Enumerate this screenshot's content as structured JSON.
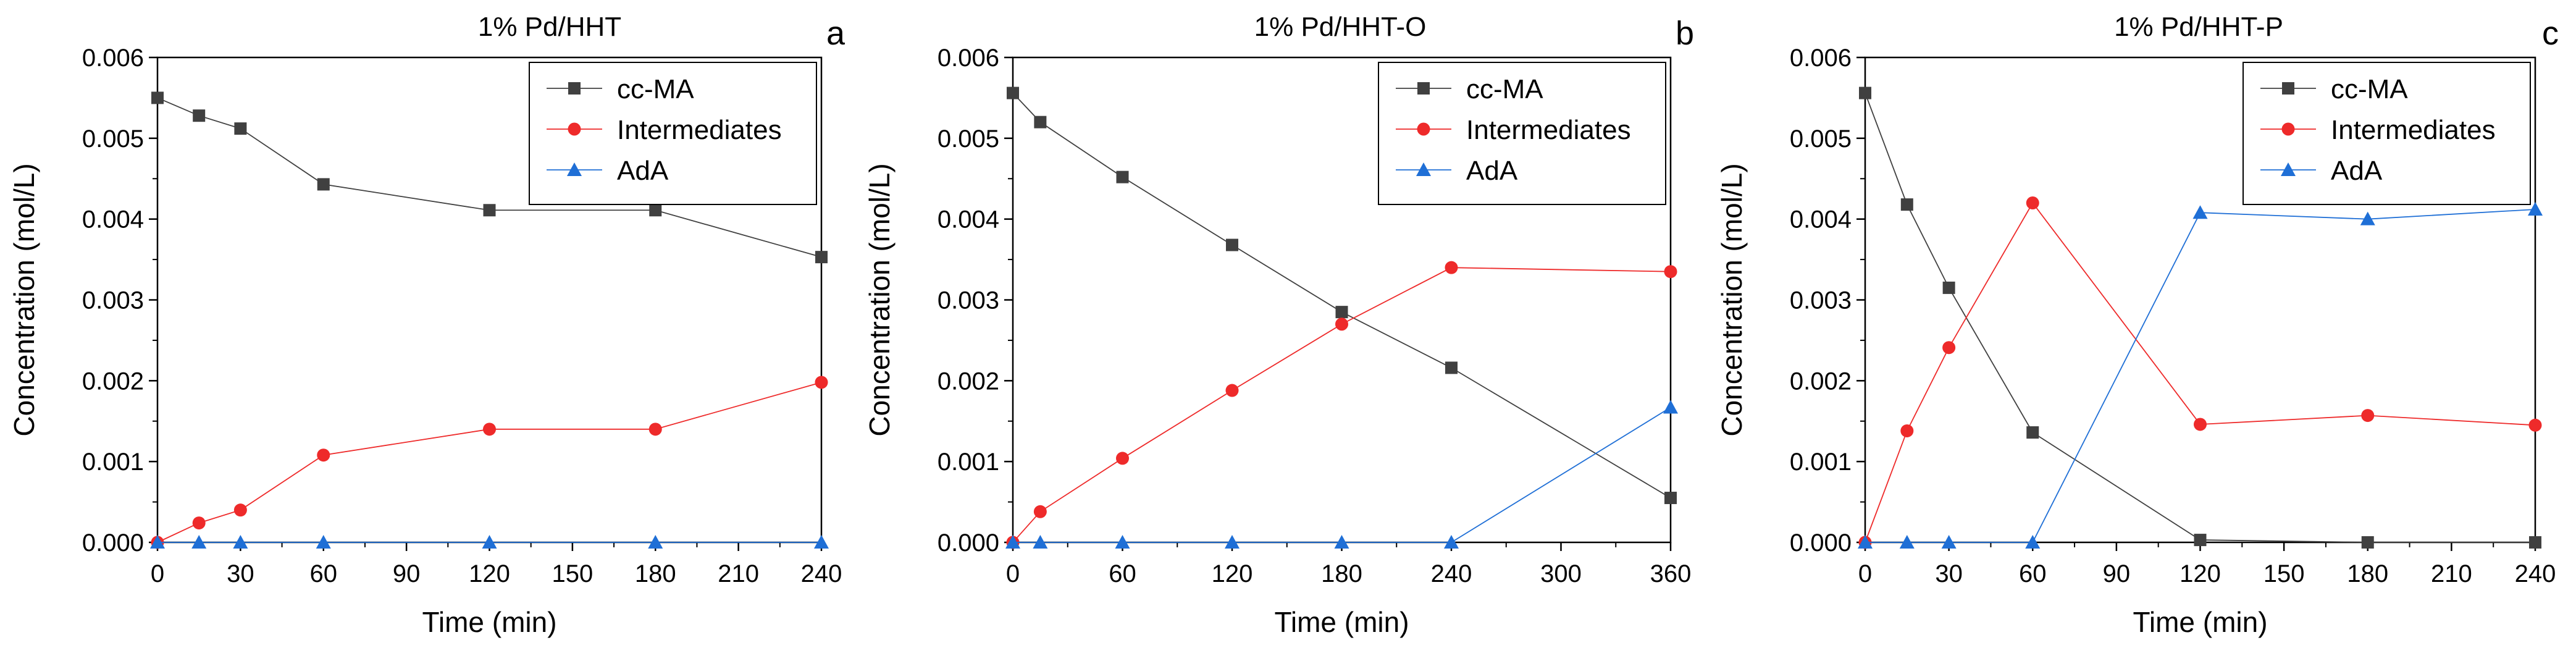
{
  "colors": {
    "cc_ma": "#404040",
    "intermediates": "#ee2a2a",
    "ada": "#1f6fd6",
    "axis": "#000000"
  },
  "chart_data": [
    {
      "type": "line",
      "panel_label": "a",
      "title": "1% Pd/HHT",
      "xlabel": "Time (min)",
      "ylabel": "Concentration (mol/L)",
      "xlim": [
        0,
        240
      ],
      "ylim": [
        0,
        0.006
      ],
      "xticks": [
        0,
        30,
        60,
        90,
        120,
        150,
        180,
        210,
        240
      ],
      "yticks": [
        "0.000",
        "0.001",
        "0.002",
        "0.003",
        "0.004",
        "0.005",
        "0.006"
      ],
      "legend": "top-right",
      "series": [
        {
          "name": "cc-MA",
          "marker": "square",
          "x": [
            0,
            15,
            30,
            60,
            120,
            180,
            240
          ],
          "y": [
            0.0055,
            0.00528,
            0.00512,
            0.00443,
            0.00411,
            0.00411,
            0.00353
          ]
        },
        {
          "name": "Intermediates",
          "marker": "circle",
          "x": [
            0,
            15,
            30,
            60,
            120,
            180,
            240
          ],
          "y": [
            0,
            0.00024,
            0.0004,
            0.00108,
            0.0014,
            0.0014,
            0.00198
          ]
        },
        {
          "name": "AdA",
          "marker": "triangle",
          "x": [
            0,
            15,
            30,
            60,
            120,
            180,
            240
          ],
          "y": [
            0,
            0,
            0,
            0,
            0,
            0,
            0
          ]
        }
      ]
    },
    {
      "type": "line",
      "panel_label": "b",
      "title": "1% Pd/HHT-O",
      "xlabel": "Time (min)",
      "ylabel": "Concentration (mol/L)",
      "xlim": [
        0,
        360
      ],
      "ylim": [
        0,
        0.006
      ],
      "xticks": [
        0,
        60,
        120,
        180,
        240,
        300,
        360
      ],
      "yticks": [
        "0.000",
        "0.001",
        "0.002",
        "0.003",
        "0.004",
        "0.005",
        "0.006"
      ],
      "legend": "top-right",
      "series": [
        {
          "name": "cc-MA",
          "marker": "square",
          "x": [
            0,
            15,
            60,
            120,
            180,
            240,
            360
          ],
          "y": [
            0.00556,
            0.0052,
            0.00452,
            0.00368,
            0.00285,
            0.00216,
            0.00055
          ]
        },
        {
          "name": "Intermediates",
          "marker": "circle",
          "x": [
            0,
            15,
            60,
            120,
            180,
            240,
            360
          ],
          "y": [
            0,
            0.00038,
            0.00104,
            0.00188,
            0.0027,
            0.0034,
            0.00335
          ]
        },
        {
          "name": "AdA",
          "marker": "triangle",
          "x": [
            0,
            15,
            60,
            120,
            180,
            240,
            360
          ],
          "y": [
            0,
            0,
            0,
            0,
            0,
            0,
            0.00167
          ]
        }
      ]
    },
    {
      "type": "line",
      "panel_label": "c",
      "title": "1% Pd/HHT-P",
      "xlabel": "Time (min)",
      "ylabel": "Concentration (mol/L)",
      "xlim": [
        0,
        240
      ],
      "ylim": [
        0,
        0.006
      ],
      "xticks": [
        0,
        30,
        60,
        90,
        120,
        150,
        180,
        210,
        240
      ],
      "yticks": [
        "0.000",
        "0.001",
        "0.002",
        "0.003",
        "0.004",
        "0.005",
        "0.006"
      ],
      "legend": "top-right",
      "series": [
        {
          "name": "cc-MA",
          "marker": "square",
          "x": [
            0,
            15,
            30,
            60,
            120,
            180,
            240
          ],
          "y": [
            0.00556,
            0.00418,
            0.00315,
            0.00136,
            3e-05,
            0,
            0
          ]
        },
        {
          "name": "Intermediates",
          "marker": "circle",
          "x": [
            0,
            15,
            30,
            60,
            120,
            180,
            240
          ],
          "y": [
            0,
            0.00138,
            0.00241,
            0.0042,
            0.00146,
            0.00157,
            0.00145
          ]
        },
        {
          "name": "AdA",
          "marker": "triangle",
          "x": [
            0,
            15,
            30,
            60,
            120,
            180,
            240
          ],
          "y": [
            0,
            0,
            0,
            0,
            0.00408,
            0.004,
            0.00412
          ]
        }
      ]
    }
  ]
}
